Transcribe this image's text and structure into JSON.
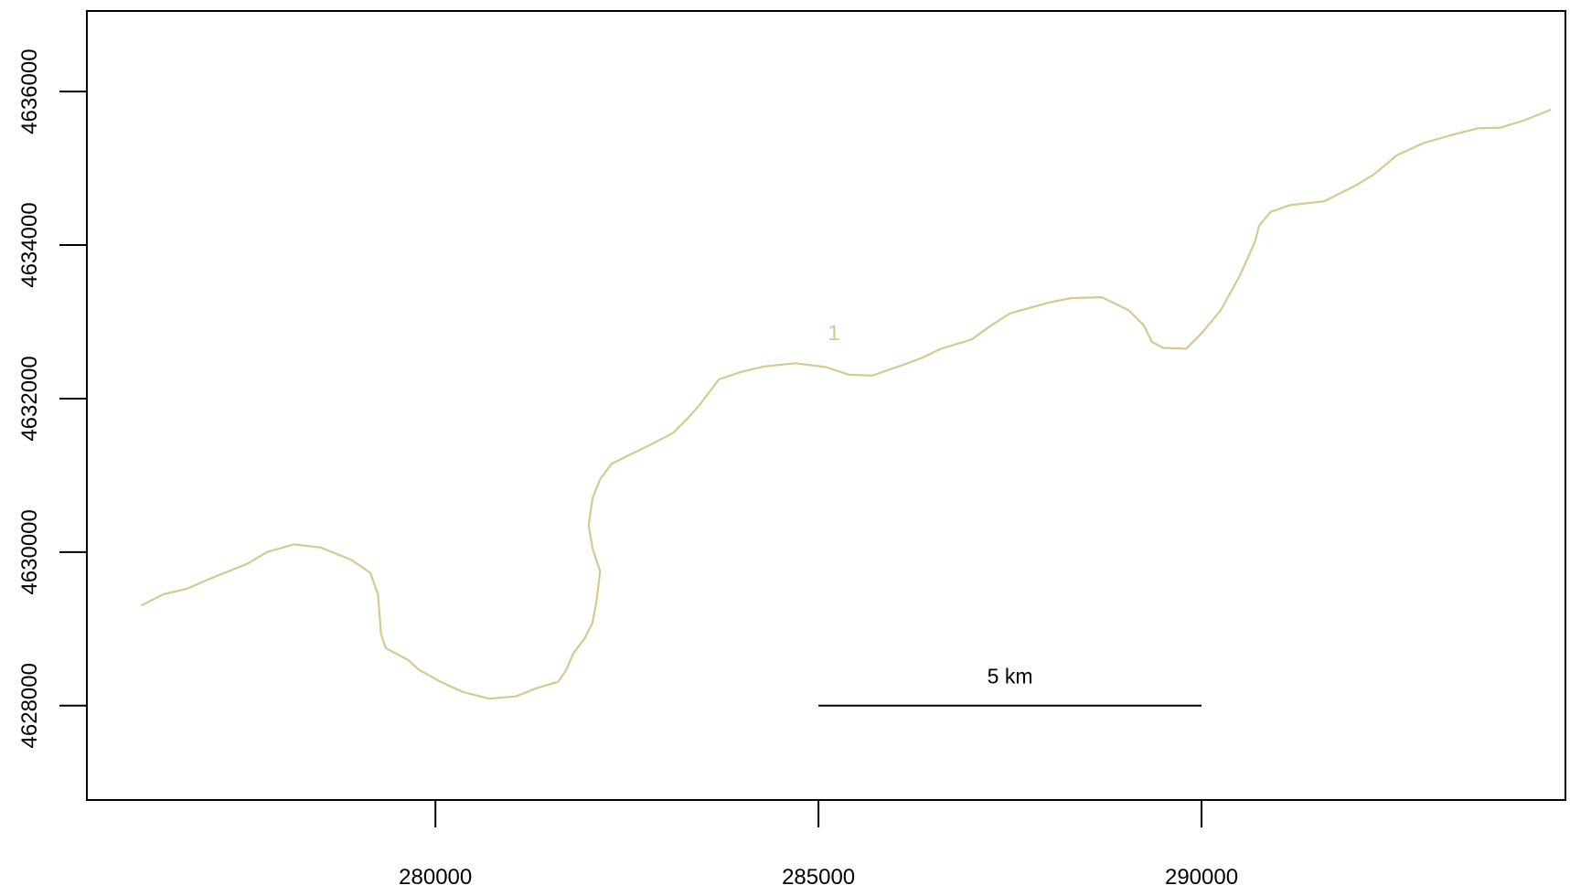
{
  "chart_data": {
    "type": "line",
    "title": "",
    "xlabel": "",
    "ylabel": "",
    "xlim": [
      275450,
      294750
    ],
    "ylim": [
      4626770,
      4637050
    ],
    "x_ticks": [
      280000,
      285000,
      290000
    ],
    "x_tick_labels": [
      "280000",
      "285000",
      "290000"
    ],
    "y_ticks": [
      4628000,
      4630000,
      4632000,
      4634000,
      4636000
    ],
    "y_tick_labels": [
      "4628000",
      "4630000",
      "4632000",
      "4634000",
      "4636000"
    ],
    "grid": false,
    "series": [
      {
        "color": "#d6c98f",
        "points": [
          [
            276170,
            4629310
          ],
          [
            276450,
            4629450
          ],
          [
            276750,
            4629520
          ],
          [
            277050,
            4629650
          ],
          [
            277550,
            4629850
          ],
          [
            277800,
            4630000
          ],
          [
            278150,
            4630100
          ],
          [
            278500,
            4630060
          ],
          [
            278900,
            4629900
          ],
          [
            279150,
            4629730
          ],
          [
            279250,
            4629450
          ],
          [
            279290,
            4628930
          ],
          [
            279350,
            4628750
          ],
          [
            279650,
            4628590
          ],
          [
            279780,
            4628470
          ],
          [
            280050,
            4628320
          ],
          [
            280350,
            4628180
          ],
          [
            280700,
            4628090
          ],
          [
            281050,
            4628120
          ],
          [
            281300,
            4628220
          ],
          [
            281600,
            4628310
          ],
          [
            281700,
            4628450
          ],
          [
            281800,
            4628680
          ],
          [
            281950,
            4628880
          ],
          [
            282050,
            4629080
          ],
          [
            282100,
            4629350
          ],
          [
            282150,
            4629750
          ],
          [
            282050,
            4630050
          ],
          [
            282000,
            4630350
          ],
          [
            282050,
            4630700
          ],
          [
            282150,
            4630950
          ],
          [
            282300,
            4631150
          ],
          [
            282500,
            4631250
          ],
          [
            282750,
            4631370
          ],
          [
            283100,
            4631550
          ],
          [
            283300,
            4631750
          ],
          [
            283450,
            4631920
          ],
          [
            283700,
            4632250
          ],
          [
            284000,
            4632350
          ],
          [
            284300,
            4632420
          ],
          [
            284700,
            4632460
          ],
          [
            285100,
            4632410
          ],
          [
            285400,
            4632310
          ],
          [
            285700,
            4632300
          ],
          [
            286050,
            4632420
          ],
          [
            286350,
            4632530
          ],
          [
            286600,
            4632650
          ],
          [
            287000,
            4632770
          ],
          [
            287250,
            4632950
          ],
          [
            287500,
            4633110
          ],
          [
            288000,
            4633250
          ],
          [
            288300,
            4633310
          ],
          [
            288700,
            4633320
          ],
          [
            289050,
            4633150
          ],
          [
            289250,
            4632950
          ],
          [
            289350,
            4632740
          ],
          [
            289500,
            4632660
          ],
          [
            289800,
            4632650
          ],
          [
            290000,
            4632850
          ],
          [
            290250,
            4633150
          ],
          [
            290500,
            4633600
          ],
          [
            290700,
            4634050
          ],
          [
            290750,
            4634250
          ],
          [
            290900,
            4634430
          ],
          [
            291150,
            4634520
          ],
          [
            291600,
            4634570
          ],
          [
            292000,
            4634770
          ],
          [
            292250,
            4634920
          ],
          [
            292550,
            4635170
          ],
          [
            292900,
            4635330
          ],
          [
            293250,
            4635430
          ],
          [
            293600,
            4635520
          ],
          [
            293900,
            4635530
          ],
          [
            294200,
            4635620
          ],
          [
            294550,
            4635760
          ]
        ]
      }
    ],
    "annotations": [
      {
        "text": "1",
        "x": 285200,
        "y": 4632760,
        "color": "#d6c98f"
      }
    ],
    "scale_bar": {
      "label": "5 km",
      "x_start": 285000,
      "x_end": 290000,
      "y": 4628000
    }
  }
}
